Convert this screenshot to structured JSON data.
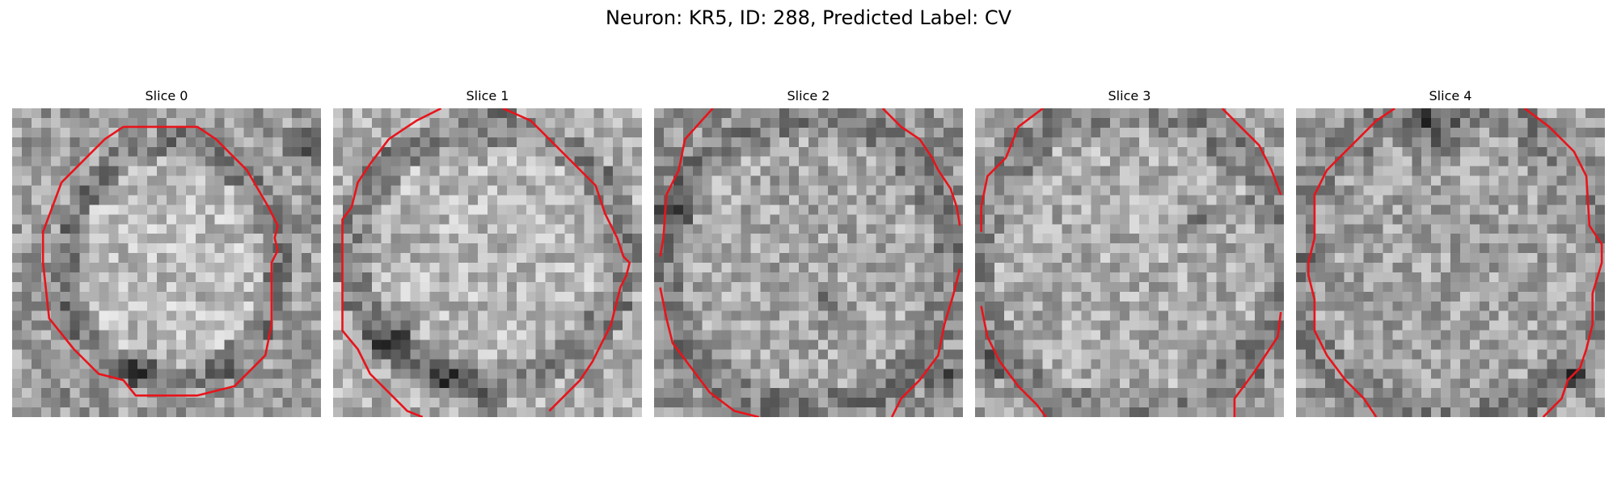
{
  "figure": {
    "title": "Neuron: KR5, ID: 288, Predicted Label: CV"
  },
  "slices": [
    {
      "label": "Slice 0"
    },
    {
      "label": "Slice 1"
    },
    {
      "label": "Slice 2"
    },
    {
      "label": "Slice 3"
    },
    {
      "label": "Slice 4"
    }
  ],
  "colors": {
    "contour": "#e8141b",
    "background": "#ffffff"
  }
}
